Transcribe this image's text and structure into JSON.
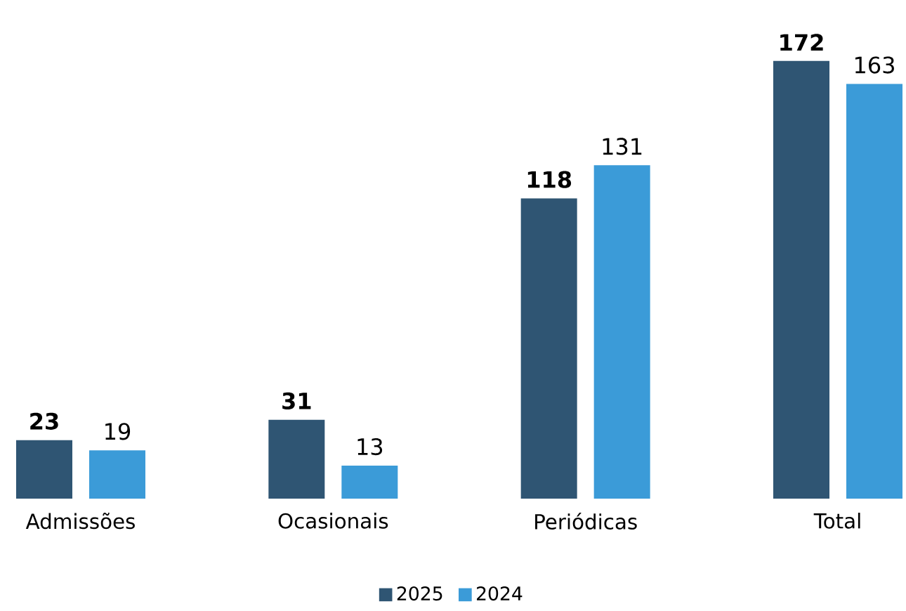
{
  "chart_data": {
    "type": "bar",
    "categories": [
      "Admissões",
      "Ocasionais",
      "Periódicas",
      "Total"
    ],
    "series": [
      {
        "name": "2025",
        "color": "#2f5573",
        "values": [
          23,
          31,
          118,
          172
        ]
      },
      {
        "name": "2024",
        "color": "#3b9bd8",
        "values": [
          19,
          13,
          131,
          163
        ]
      }
    ],
    "data_labels": true,
    "legend": "bottom"
  }
}
